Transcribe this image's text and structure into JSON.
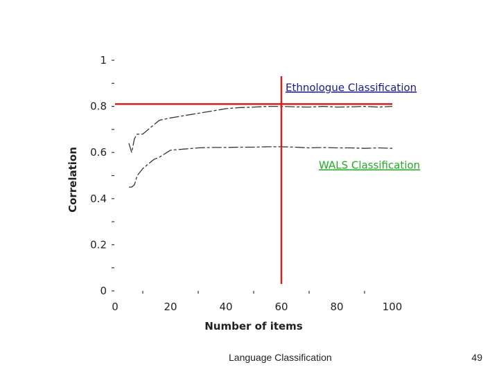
{
  "chart_data": {
    "type": "line",
    "xlabel": "Number of items",
    "ylabel": "Correlation",
    "xlim": [
      0,
      100
    ],
    "ylim": [
      0,
      1
    ],
    "x_ticks": [
      0,
      20,
      40,
      60,
      80,
      100
    ],
    "y_ticks": [
      0,
      0.2,
      0.4,
      0.6,
      0.8,
      1
    ],
    "x_tick_labels": [
      "0",
      "20",
      "40",
      "60",
      "80",
      "100"
    ],
    "y_tick_labels": [
      "0",
      "0.2",
      "0.4",
      "0.6",
      "0.8",
      "1"
    ],
    "series": [
      {
        "name": "Ethnologue Classification",
        "color": "#333333",
        "x": [
          5,
          6,
          7,
          8,
          10,
          12,
          14,
          16,
          20,
          25,
          30,
          35,
          40,
          45,
          50,
          55,
          60,
          65,
          70,
          75,
          80,
          85,
          90,
          95,
          100
        ],
        "values": [
          0.64,
          0.6,
          0.66,
          0.68,
          0.68,
          0.7,
          0.72,
          0.74,
          0.75,
          0.76,
          0.77,
          0.78,
          0.79,
          0.795,
          0.797,
          0.8,
          0.8,
          0.798,
          0.797,
          0.8,
          0.797,
          0.798,
          0.8,
          0.797,
          0.8
        ]
      },
      {
        "name": "WALS Classification",
        "color": "#333333",
        "x": [
          5,
          6,
          7,
          8,
          10,
          12,
          14,
          16,
          20,
          25,
          30,
          35,
          40,
          45,
          50,
          55,
          60,
          65,
          70,
          75,
          80,
          85,
          90,
          95,
          100
        ],
        "values": [
          0.45,
          0.45,
          0.46,
          0.5,
          0.53,
          0.55,
          0.57,
          0.58,
          0.61,
          0.615,
          0.62,
          0.622,
          0.622,
          0.623,
          0.623,
          0.625,
          0.625,
          0.623,
          0.62,
          0.622,
          0.62,
          0.62,
          0.618,
          0.62,
          0.618
        ]
      }
    ],
    "reference_lines": {
      "horizontal_y": 0.81,
      "vertical_x": 60,
      "color": "#d42020"
    },
    "annotations": [
      {
        "text": "Ethnologue Classification",
        "color": "#1a1a8c",
        "x": 60,
        "y": 0.867
      },
      {
        "text": "WALS Classification",
        "color": "#22aa22",
        "x": 72,
        "y": 0.53
      }
    ],
    "legend": "none",
    "grid": false
  },
  "footer": {
    "title": "Language Classification",
    "page_number": "49"
  }
}
